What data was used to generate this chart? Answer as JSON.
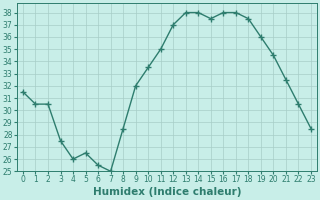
{
  "x": [
    0,
    1,
    2,
    3,
    4,
    5,
    6,
    7,
    8,
    9,
    10,
    11,
    12,
    13,
    14,
    15,
    16,
    17,
    18,
    19,
    20,
    21,
    22,
    23
  ],
  "y": [
    31.5,
    30.5,
    30.5,
    27.5,
    26.0,
    26.5,
    25.5,
    25.0,
    28.5,
    32.0,
    33.5,
    35.0,
    37.0,
    38.0,
    38.0,
    37.5,
    38.0,
    38.0,
    37.5,
    36.0,
    34.5,
    32.5,
    30.5,
    28.5
  ],
  "line_color": "#2e7d6e",
  "marker": "+",
  "bg_color": "#c8eee8",
  "grid_color": "#a8cec8",
  "xlabel": "Humidex (Indice chaleur)",
  "xlim": [
    -0.5,
    23.5
  ],
  "ylim": [
    25,
    38.8
  ],
  "yticks": [
    25,
    26,
    27,
    28,
    29,
    30,
    31,
    32,
    33,
    34,
    35,
    36,
    37,
    38
  ],
  "xticks": [
    0,
    1,
    2,
    3,
    4,
    5,
    6,
    7,
    8,
    9,
    10,
    11,
    12,
    13,
    14,
    15,
    16,
    17,
    18,
    19,
    20,
    21,
    22,
    23
  ],
  "tick_fontsize": 5.5,
  "xlabel_fontsize": 7.5,
  "line_width": 1.0,
  "marker_size": 4
}
